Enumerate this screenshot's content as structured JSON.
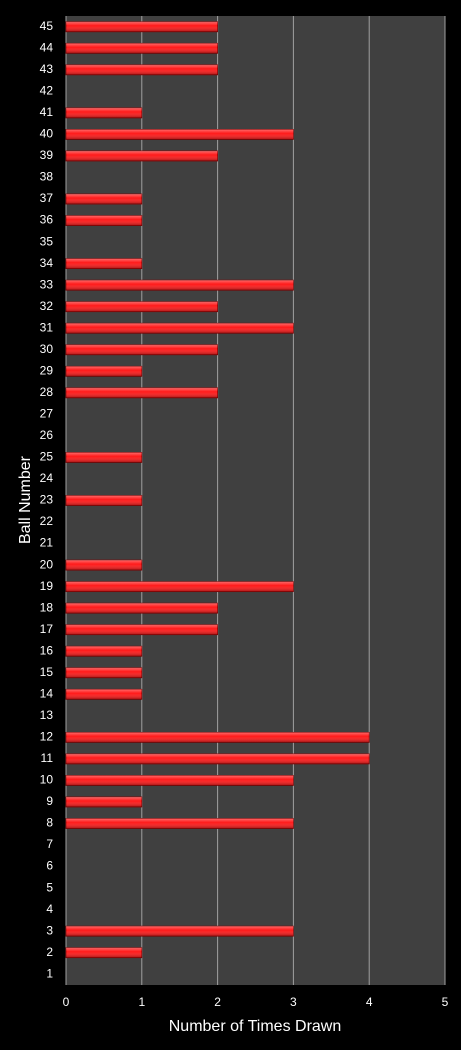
{
  "chart_data": {
    "type": "bar",
    "orientation": "horizontal",
    "x_label": "Number of Times Drawn",
    "y_label": "Ball Number",
    "categories": [
      "1",
      "2",
      "3",
      "4",
      "5",
      "6",
      "7",
      "8",
      "9",
      "10",
      "11",
      "12",
      "13",
      "14",
      "15",
      "16",
      "17",
      "18",
      "19",
      "20",
      "21",
      "22",
      "23",
      "24",
      "25",
      "26",
      "27",
      "28",
      "29",
      "30",
      "31",
      "32",
      "33",
      "34",
      "35",
      "36",
      "37",
      "38",
      "39",
      "40",
      "41",
      "42",
      "43",
      "44",
      "45"
    ],
    "values": [
      0,
      1,
      3,
      0,
      0,
      0,
      0,
      3,
      1,
      3,
      4,
      4,
      0,
      1,
      1,
      1,
      2,
      2,
      3,
      1,
      0,
      0,
      1,
      0,
      1,
      0,
      0,
      2,
      1,
      2,
      3,
      2,
      3,
      1,
      0,
      1,
      1,
      0,
      2,
      3,
      1,
      0,
      2,
      2,
      2
    ],
    "color": "#ff1a1a",
    "xlim": [
      0,
      5
    ],
    "xticks": [
      0,
      1,
      2,
      3,
      4,
      5
    ],
    "grid": true
  }
}
